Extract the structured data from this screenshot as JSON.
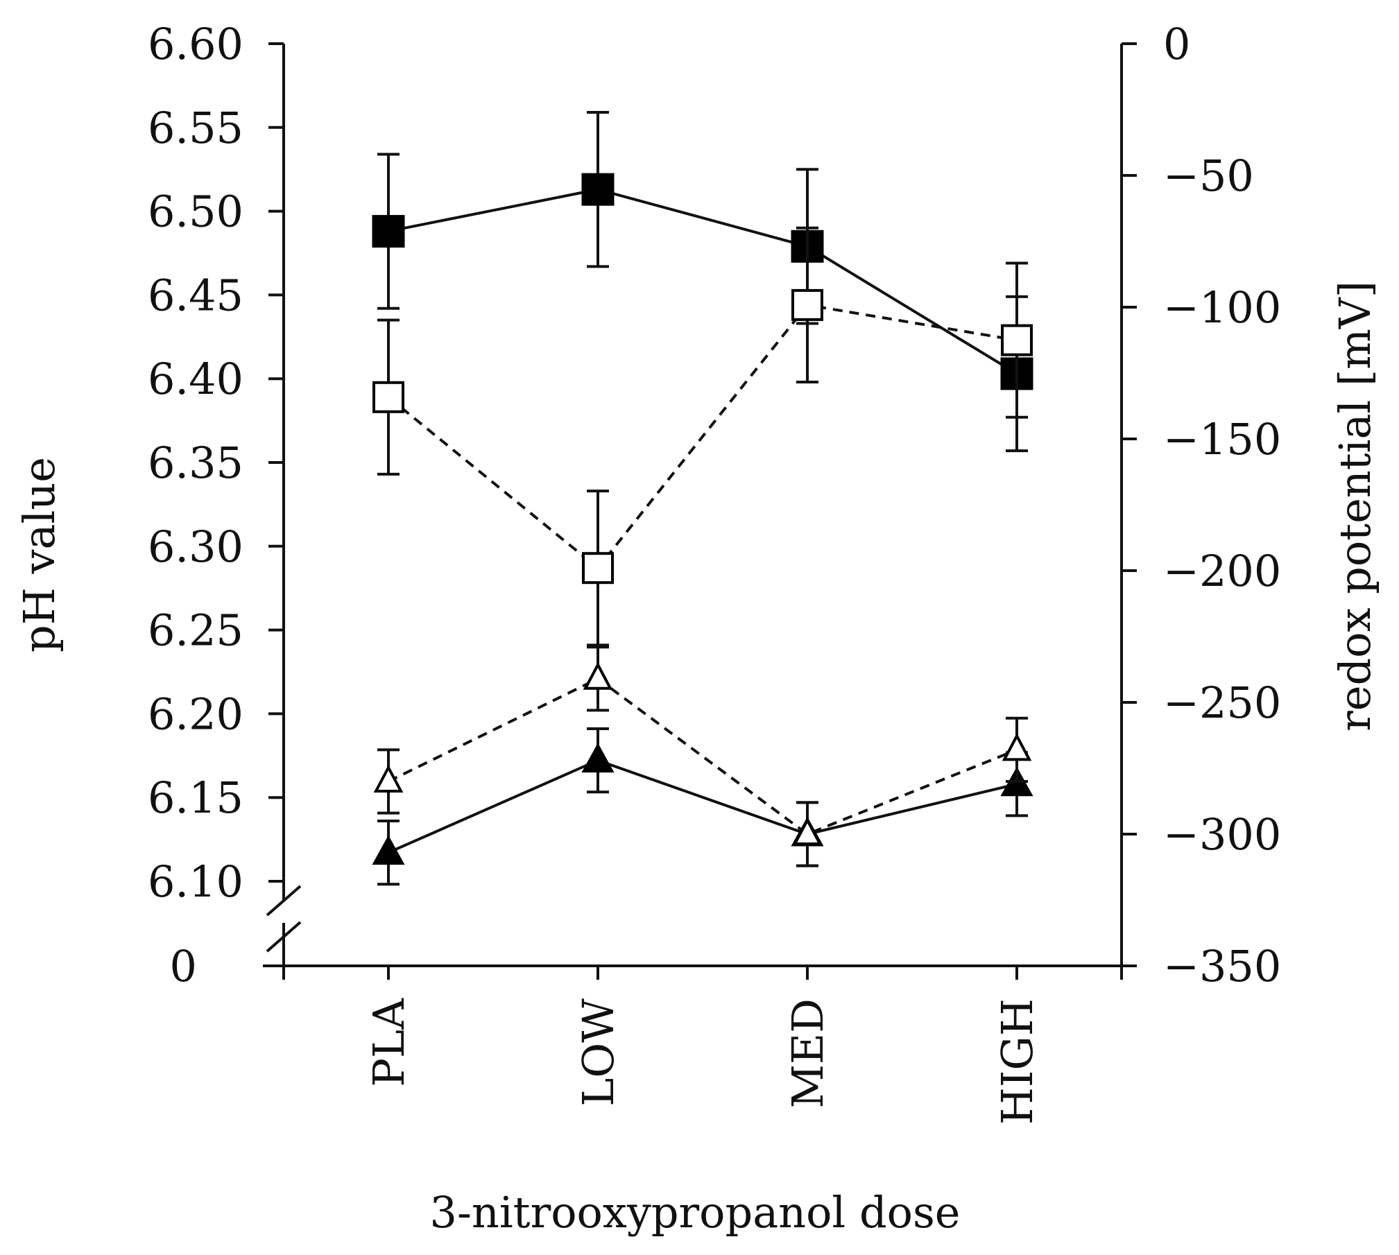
{
  "chart_data": {
    "type": "line",
    "xlabel": "3-nitrooxypropanol dose",
    "categories": [
      "PLA",
      "LOW",
      "MED",
      "HIGH"
    ],
    "left_axis": {
      "label": "pH value",
      "ylim": [
        6.1,
        6.6
      ],
      "ticks": [
        "6.60",
        "6.55",
        "6.50",
        "6.45",
        "6.40",
        "6.35",
        "6.30",
        "6.25",
        "6.20",
        "6.15",
        "6.10"
      ],
      "break_label": "0",
      "axis_break": true
    },
    "right_axis": {
      "label": "redox potential [mV]",
      "ylim": [
        -350,
        0
      ],
      "ticks": [
        "0",
        "−50",
        "−100",
        "−150",
        "−200",
        "−250",
        "−300",
        "−350"
      ]
    },
    "series": [
      {
        "name": "pH (filled square)",
        "axis": "left",
        "marker": "filled-square",
        "line": "solid",
        "values": [
          6.488,
          6.513,
          6.479,
          6.403
        ],
        "error": [
          0.046,
          0.046,
          0.046,
          0.046
        ]
      },
      {
        "name": "pH (open square)",
        "axis": "left",
        "marker": "open-square",
        "line": "dashed",
        "values": [
          6.389,
          6.287,
          6.444,
          6.423
        ],
        "error": [
          0.046,
          0.046,
          0.046,
          0.046
        ]
      },
      {
        "name": "redox potential (filled triangle)",
        "axis": "right",
        "marker": "filled-triangle",
        "line": "solid",
        "values": [
          -307,
          -272,
          -300,
          -281
        ],
        "error": [
          12,
          12,
          12,
          12
        ]
      },
      {
        "name": "redox potential (open triangle)",
        "axis": "right",
        "marker": "open-triangle",
        "line": "dashed",
        "values": [
          -280,
          -241,
          -300,
          -268
        ],
        "error": [
          12,
          12,
          12,
          12
        ]
      }
    ]
  }
}
